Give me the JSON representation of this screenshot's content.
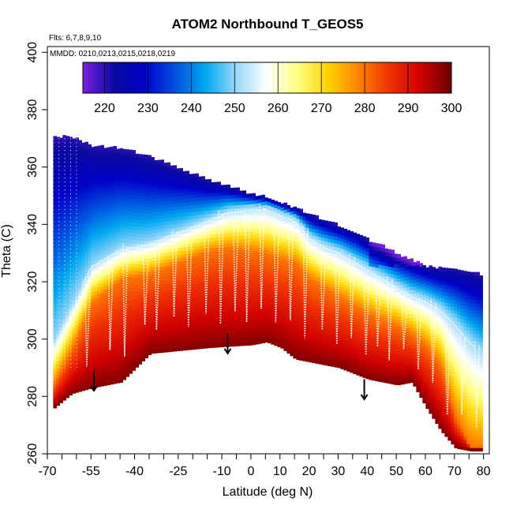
{
  "chart_data": {
    "type": "heatmap",
    "title": "ATOM2 Northbound T_GEOS5",
    "flights_note": "Flts: 6,7,8,9,10",
    "dates_note": "MMDD: 0210,0213,0215,0218,0219",
    "xlabel": "Latitude (deg N)",
    "ylabel": "Theta (C)",
    "xlim": [
      -70,
      82
    ],
    "ylim": [
      260,
      402
    ],
    "x_tick_labels": [
      "-70",
      "-55",
      "-40",
      "-25",
      "-10",
      "0",
      "10",
      "20",
      "30",
      "40",
      "50",
      "60",
      "70",
      "80"
    ],
    "x_tick_values": [
      -70,
      -55,
      -40,
      -25,
      -10,
      0,
      10,
      20,
      30,
      40,
      50,
      60,
      70,
      80
    ],
    "x_minor_ticks": [
      -65,
      -60,
      -50,
      -45,
      -35,
      -30,
      -20,
      -15,
      -5,
      5,
      15,
      25,
      35,
      45,
      55,
      65,
      75
    ],
    "y_tick_labels": [
      "260",
      "280",
      "300",
      "320",
      "340",
      "360",
      "380",
      "400"
    ],
    "y_tick_values": [
      260,
      280,
      300,
      320,
      340,
      360,
      380,
      400
    ],
    "colorbar": {
      "min": 215,
      "max": 300,
      "tick_labels": [
        "220",
        "230",
        "240",
        "250",
        "260",
        "270",
        "280",
        "290",
        "300"
      ],
      "tick_values": [
        220,
        230,
        240,
        250,
        260,
        270,
        280,
        290,
        300
      ],
      "colors": [
        "#7a1fe0",
        "#0a0aa0",
        "#0000c8",
        "#0050e0",
        "#00a8f0",
        "#9ad8f8",
        "#ffffff",
        "#ffff80",
        "#ffd000",
        "#ff8000",
        "#f03000",
        "#d00000",
        "#6a0000"
      ]
    },
    "field_profile": {
      "lat": [
        -68,
        -62,
        -55,
        -45,
        -35,
        -25,
        -15,
        -8,
        0,
        5,
        10,
        15,
        20,
        25,
        30,
        35,
        40,
        45,
        50,
        55,
        60,
        65,
        70,
        75,
        79
      ],
      "theta_surface": [
        276,
        281,
        283,
        285,
        295,
        296,
        297,
        297.5,
        298,
        299,
        297,
        293,
        292,
        291,
        290,
        288,
        286,
        285,
        284,
        285,
        276,
        268,
        262,
        261,
        261
      ],
      "theta_top": [
        370,
        370,
        367,
        366,
        363,
        359,
        355,
        353,
        350,
        349,
        347,
        345,
        343,
        341,
        339,
        337,
        334,
        332,
        329,
        327,
        325,
        324,
        324,
        323,
        322
      ],
      "theta_isentrope_280": [
        284,
        296,
        312,
        320,
        322,
        326,
        330,
        331,
        330,
        329,
        327,
        326,
        320,
        317,
        314,
        311,
        308,
        306,
        304,
        301,
        297,
        290,
        272,
        262,
        261
      ],
      "theta_isentrope_250": [
        300,
        312,
        326,
        332,
        334,
        338,
        342,
        345,
        346,
        346,
        344,
        342,
        336,
        333,
        331,
        328,
        325,
        322,
        319,
        316,
        314,
        311,
        306,
        300,
        296
      ]
    },
    "arrows": [
      {
        "lat": -54,
        "theta": 289
      },
      {
        "lat": -8,
        "theta": 302
      },
      {
        "lat": 39,
        "theta": 286
      }
    ]
  }
}
